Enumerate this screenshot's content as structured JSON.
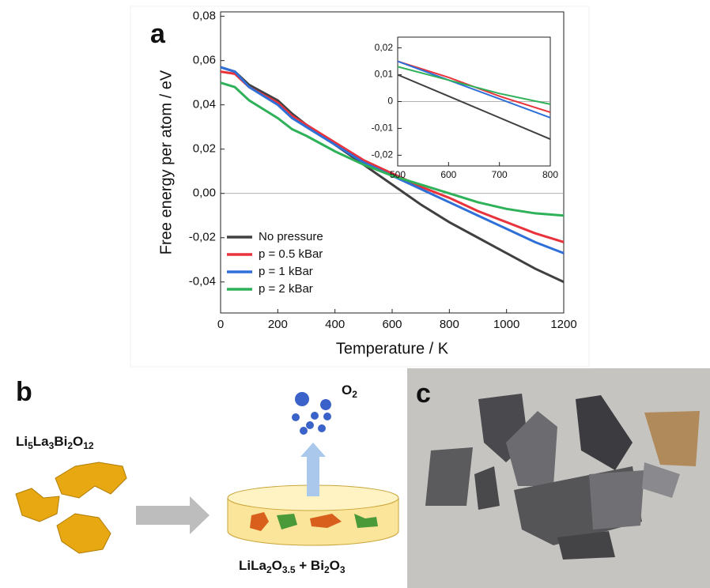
{
  "panels": {
    "a": "a",
    "b": "b",
    "c": "c"
  },
  "chart_data": [
    {
      "type": "line",
      "xlabel": "Temperature / K",
      "ylabel": "Free energy per atom / eV",
      "x": [
        0,
        50,
        100,
        200,
        250,
        300,
        400,
        500,
        600,
        700,
        800,
        900,
        1000,
        1100,
        1200
      ],
      "series": [
        {
          "name": "No pressure",
          "color": "#404040",
          "values": [
            0.057,
            0.055,
            0.049,
            0.042,
            0.036,
            0.031,
            0.022,
            0.013,
            0.004,
            -0.005,
            -0.013,
            -0.02,
            -0.027,
            -0.034,
            -0.04
          ]
        },
        {
          "name": "p = 0.5 kBar",
          "color": "#e8323c",
          "values": [
            0.055,
            0.054,
            0.048,
            0.041,
            0.035,
            0.031,
            0.023,
            0.015,
            0.009,
            0.003,
            -0.002,
            -0.008,
            -0.013,
            -0.018,
            -0.022
          ]
        },
        {
          "name": "p = 1 kBar",
          "color": "#2f6fd8",
          "values": [
            0.057,
            0.055,
            0.048,
            0.04,
            0.034,
            0.03,
            0.022,
            0.014,
            0.008,
            0.002,
            -0.004,
            -0.01,
            -0.016,
            -0.022,
            -0.027
          ]
        },
        {
          "name": "p = 2 kBar",
          "color": "#2fb15a",
          "values": [
            0.05,
            0.048,
            0.042,
            0.034,
            0.029,
            0.026,
            0.019,
            0.013,
            0.008,
            0.004,
            0.0,
            -0.004,
            -0.007,
            -0.009,
            -0.01
          ]
        }
      ],
      "xlim": [
        0,
        1200
      ],
      "xticks": [
        0,
        200,
        400,
        600,
        800,
        1000,
        1200
      ],
      "ylim": [
        -0.054,
        0.082
      ],
      "yticks": [
        {
          "value": -0.04,
          "label": "-0,04"
        },
        {
          "value": -0.02,
          "label": "-0,02"
        },
        {
          "value": 0,
          "label": "0,00"
        },
        {
          "value": 0.02,
          "label": "0,02"
        },
        {
          "value": 0.04,
          "label": "0,04"
        },
        {
          "value": 0.06,
          "label": "0,06"
        },
        {
          "value": 0.08,
          "label": "0,08"
        }
      ],
      "zero_line": true,
      "legend": "lower left"
    },
    {
      "type": "line",
      "x": [
        500,
        600,
        700,
        800
      ],
      "series": [
        {
          "color": "#404040",
          "values": [
            0.01,
            0.002,
            -0.006,
            -0.014
          ]
        },
        {
          "color": "#e8323c",
          "values": [
            0.015,
            0.009,
            0.002,
            -0.004
          ]
        },
        {
          "color": "#2f6fd8",
          "values": [
            0.015,
            0.008,
            0.001,
            -0.006
          ]
        },
        {
          "color": "#2fb15a",
          "values": [
            0.013,
            0.008,
            0.003,
            -0.001
          ]
        }
      ],
      "xlim": [
        500,
        800
      ],
      "xticks": [
        500,
        600,
        700,
        800
      ],
      "ylim": [
        -0.024,
        0.024
      ],
      "yticks": [
        {
          "value": -0.02,
          "label": "-0,02"
        },
        {
          "value": -0.01,
          "label": "-0,01"
        },
        0,
        {
          "value": 0.01,
          "label": "0,01"
        },
        {
          "value": 0.02,
          "label": "0,02"
        }
      ],
      "zero_line": true
    }
  ],
  "diagram": {
    "reactant": [
      "Li",
      "5",
      "La",
      "3",
      "Bi",
      "2",
      "O",
      "12"
    ],
    "gas": [
      "O",
      "2"
    ],
    "product": [
      "LiLa",
      "2",
      "O",
      "3.5",
      "  + Bi",
      "2",
      "O",
      "3"
    ]
  }
}
